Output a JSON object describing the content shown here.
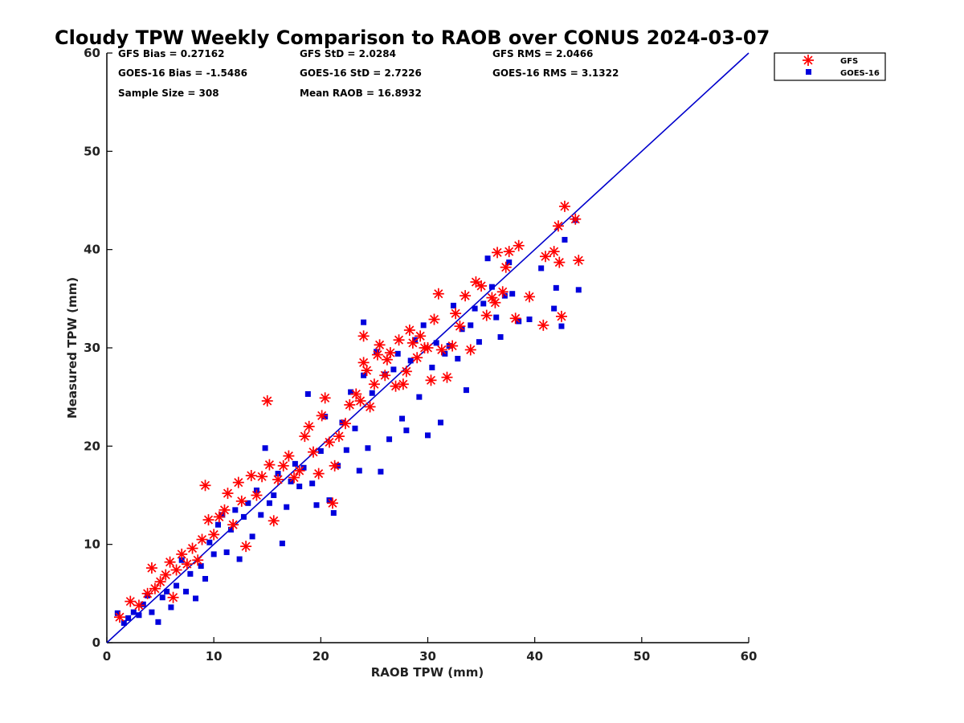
{
  "chart_data": {
    "type": "scatter",
    "title": "Cloudy TPW Weekly Comparison to RAOB over CONUS 2024-03-07",
    "xlabel": "RAOB TPW (mm)",
    "ylabel": "Measured TPW (mm)",
    "xlim": [
      0,
      60
    ],
    "ylim": [
      0,
      60
    ],
    "xticks": [
      "0",
      "10",
      "20",
      "30",
      "40",
      "50",
      "60"
    ],
    "yticks": [
      "0",
      "10",
      "20",
      "30",
      "40",
      "50",
      "60"
    ],
    "grid": false,
    "legend_position": "top-right, outside plot area",
    "reference_line": {
      "x": [
        0,
        60
      ],
      "y": [
        0,
        60
      ],
      "color": "#0000cc"
    },
    "stats": [
      {
        "label": "GFS Bias = 0.27162"
      },
      {
        "label": "GFS StD = 2.0284"
      },
      {
        "label": "GFS RMS = 2.0466"
      },
      {
        "label": "GOES-16 Bias = -1.5486"
      },
      {
        "label": "GOES-16 StD = 2.7226"
      },
      {
        "label": "GOES-16 RMS = 3.1322"
      },
      {
        "label": "Sample Size = 308"
      },
      {
        "label": "Mean RAOB = 16.8932"
      }
    ],
    "series": [
      {
        "name": "GFS",
        "marker": "asterisk",
        "color": "#ff0000",
        "points": [
          [
            1.2,
            2.6
          ],
          [
            2.2,
            4.2
          ],
          [
            3.0,
            3.8
          ],
          [
            3.8,
            5.0
          ],
          [
            4.2,
            7.6
          ],
          [
            4.5,
            5.5
          ],
          [
            5.0,
            6.2
          ],
          [
            5.5,
            6.9
          ],
          [
            5.9,
            8.2
          ],
          [
            6.2,
            4.6
          ],
          [
            6.5,
            7.4
          ],
          [
            7.0,
            9.0
          ],
          [
            7.5,
            8.0
          ],
          [
            8.0,
            9.6
          ],
          [
            8.5,
            8.4
          ],
          [
            8.9,
            10.5
          ],
          [
            9.2,
            16.0
          ],
          [
            9.5,
            12.5
          ],
          [
            10.0,
            11.0
          ],
          [
            10.5,
            12.8
          ],
          [
            11.0,
            13.5
          ],
          [
            11.3,
            15.2
          ],
          [
            11.8,
            12.0
          ],
          [
            12.3,
            16.3
          ],
          [
            12.6,
            14.4
          ],
          [
            13.0,
            9.8
          ],
          [
            13.5,
            17.0
          ],
          [
            14.0,
            15.0
          ],
          [
            14.5,
            16.9
          ],
          [
            15.0,
            24.6
          ],
          [
            15.2,
            18.1
          ],
          [
            15.6,
            12.4
          ],
          [
            16.0,
            16.6
          ],
          [
            16.5,
            18.0
          ],
          [
            17.0,
            19.0
          ],
          [
            17.5,
            16.8
          ],
          [
            18.0,
            17.5
          ],
          [
            18.5,
            21.0
          ],
          [
            18.9,
            22.0
          ],
          [
            19.3,
            19.4
          ],
          [
            19.8,
            17.2
          ],
          [
            20.1,
            23.1
          ],
          [
            20.4,
            24.9
          ],
          [
            20.8,
            20.4
          ],
          [
            21.1,
            14.2
          ],
          [
            21.3,
            18.0
          ],
          [
            21.7,
            21.0
          ],
          [
            22.3,
            22.3
          ],
          [
            22.7,
            24.2
          ],
          [
            23.3,
            25.3
          ],
          [
            23.7,
            24.6
          ],
          [
            24.0,
            28.5
          ],
          [
            24.0,
            31.2
          ],
          [
            24.3,
            27.7
          ],
          [
            24.6,
            24.0
          ],
          [
            25.0,
            26.3
          ],
          [
            25.3,
            29.3
          ],
          [
            25.5,
            30.3
          ],
          [
            26.0,
            27.2
          ],
          [
            26.2,
            28.8
          ],
          [
            26.5,
            29.5
          ],
          [
            27.0,
            26.1
          ],
          [
            27.3,
            30.8
          ],
          [
            27.7,
            26.3
          ],
          [
            28.0,
            27.6
          ],
          [
            28.3,
            31.8
          ],
          [
            28.6,
            30.5
          ],
          [
            29.0,
            29.0
          ],
          [
            29.3,
            31.2
          ],
          [
            29.7,
            30.0
          ],
          [
            30.0,
            30.0
          ],
          [
            30.3,
            26.7
          ],
          [
            30.6,
            32.9
          ],
          [
            31.0,
            35.5
          ],
          [
            31.3,
            29.8
          ],
          [
            31.8,
            27.0
          ],
          [
            32.3,
            30.2
          ],
          [
            32.6,
            33.5
          ],
          [
            33.0,
            32.2
          ],
          [
            33.5,
            35.3
          ],
          [
            34.0,
            29.8
          ],
          [
            34.5,
            36.7
          ],
          [
            35.0,
            36.3
          ],
          [
            35.5,
            33.3
          ],
          [
            36.0,
            35.1
          ],
          [
            36.3,
            34.6
          ],
          [
            36.5,
            39.7
          ],
          [
            37.0,
            35.7
          ],
          [
            37.3,
            38.2
          ],
          [
            37.6,
            39.8
          ],
          [
            38.2,
            33.0
          ],
          [
            38.5,
            40.4
          ],
          [
            39.5,
            35.2
          ],
          [
            40.8,
            32.3
          ],
          [
            41.0,
            39.3
          ],
          [
            41.8,
            39.8
          ],
          [
            42.2,
            42.4
          ],
          [
            42.3,
            38.7
          ],
          [
            42.5,
            33.2
          ],
          [
            42.8,
            44.4
          ],
          [
            43.8,
            43.1
          ],
          [
            44.1,
            38.9
          ]
        ]
      },
      {
        "name": "GOES-16",
        "marker": "square",
        "color": "#0000dd",
        "points": [
          [
            1.0,
            3.0
          ],
          [
            1.6,
            2.0
          ],
          [
            2.0,
            2.5
          ],
          [
            2.5,
            3.1
          ],
          [
            3.0,
            2.8
          ],
          [
            3.4,
            3.9
          ],
          [
            3.8,
            4.8
          ],
          [
            4.2,
            3.1
          ],
          [
            4.8,
            2.1
          ],
          [
            5.2,
            4.6
          ],
          [
            5.6,
            5.2
          ],
          [
            6.0,
            3.6
          ],
          [
            6.5,
            5.8
          ],
          [
            7.0,
            8.4
          ],
          [
            7.4,
            5.2
          ],
          [
            7.8,
            7.0
          ],
          [
            8.3,
            4.5
          ],
          [
            8.8,
            7.8
          ],
          [
            9.2,
            6.5
          ],
          [
            9.6,
            10.2
          ],
          [
            10.0,
            9.0
          ],
          [
            10.4,
            12.0
          ],
          [
            10.8,
            13.0
          ],
          [
            11.2,
            9.2
          ],
          [
            11.6,
            11.5
          ],
          [
            12.0,
            13.5
          ],
          [
            12.4,
            8.5
          ],
          [
            12.8,
            12.8
          ],
          [
            13.2,
            14.2
          ],
          [
            13.6,
            10.8
          ],
          [
            14.0,
            15.5
          ],
          [
            14.4,
            13.0
          ],
          [
            14.8,
            19.8
          ],
          [
            15.2,
            14.2
          ],
          [
            15.6,
            15.0
          ],
          [
            16.0,
            17.2
          ],
          [
            16.4,
            10.1
          ],
          [
            16.8,
            13.8
          ],
          [
            17.2,
            16.4
          ],
          [
            17.6,
            18.2
          ],
          [
            18.0,
            15.9
          ],
          [
            18.4,
            17.8
          ],
          [
            18.8,
            25.3
          ],
          [
            19.2,
            16.2
          ],
          [
            19.6,
            14.0
          ],
          [
            20.0,
            19.5
          ],
          [
            20.4,
            23.0
          ],
          [
            20.8,
            14.5
          ],
          [
            21.2,
            13.2
          ],
          [
            21.6,
            18.0
          ],
          [
            22.0,
            22.4
          ],
          [
            22.4,
            19.6
          ],
          [
            22.8,
            25.5
          ],
          [
            23.2,
            21.8
          ],
          [
            23.6,
            17.5
          ],
          [
            24.0,
            27.2
          ],
          [
            24.0,
            32.6
          ],
          [
            24.4,
            19.8
          ],
          [
            24.8,
            25.4
          ],
          [
            25.2,
            29.6
          ],
          [
            25.6,
            17.4
          ],
          [
            26.0,
            27.3
          ],
          [
            26.4,
            20.7
          ],
          [
            26.8,
            27.8
          ],
          [
            27.2,
            29.4
          ],
          [
            27.6,
            22.8
          ],
          [
            28.0,
            21.6
          ],
          [
            28.4,
            28.7
          ],
          [
            28.8,
            30.8
          ],
          [
            29.2,
            25.0
          ],
          [
            29.6,
            32.3
          ],
          [
            30.0,
            21.1
          ],
          [
            30.4,
            28.0
          ],
          [
            30.8,
            30.5
          ],
          [
            31.2,
            22.4
          ],
          [
            31.6,
            29.4
          ],
          [
            32.0,
            30.2
          ],
          [
            32.4,
            34.3
          ],
          [
            32.8,
            28.9
          ],
          [
            33.2,
            31.9
          ],
          [
            33.6,
            25.7
          ],
          [
            34.0,
            32.3
          ],
          [
            34.4,
            34.0
          ],
          [
            34.8,
            30.6
          ],
          [
            35.2,
            34.5
          ],
          [
            35.6,
            39.1
          ],
          [
            36.0,
            36.2
          ],
          [
            36.4,
            33.1
          ],
          [
            36.8,
            31.1
          ],
          [
            37.2,
            35.3
          ],
          [
            37.6,
            38.7
          ],
          [
            37.9,
            35.5
          ],
          [
            38.5,
            32.7
          ],
          [
            39.5,
            32.9
          ],
          [
            40.6,
            38.1
          ],
          [
            41.8,
            34.0
          ],
          [
            42.0,
            36.1
          ],
          [
            42.5,
            32.2
          ],
          [
            42.8,
            41.0
          ],
          [
            43.8,
            43.0
          ],
          [
            44.1,
            35.9
          ]
        ]
      }
    ]
  }
}
